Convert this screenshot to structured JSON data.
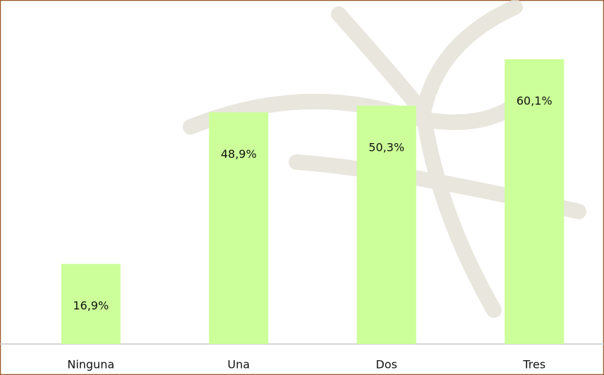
{
  "chart_data": {
    "type": "bar",
    "categories": [
      "Ninguna",
      "Una",
      "Dos",
      "Tres"
    ],
    "values": [
      16.9,
      48.9,
      50.3,
      60.1
    ],
    "value_labels": [
      "16,9%",
      "48,9%",
      "50,3%",
      "60,1%"
    ],
    "color": "#ccff99"
  }
}
